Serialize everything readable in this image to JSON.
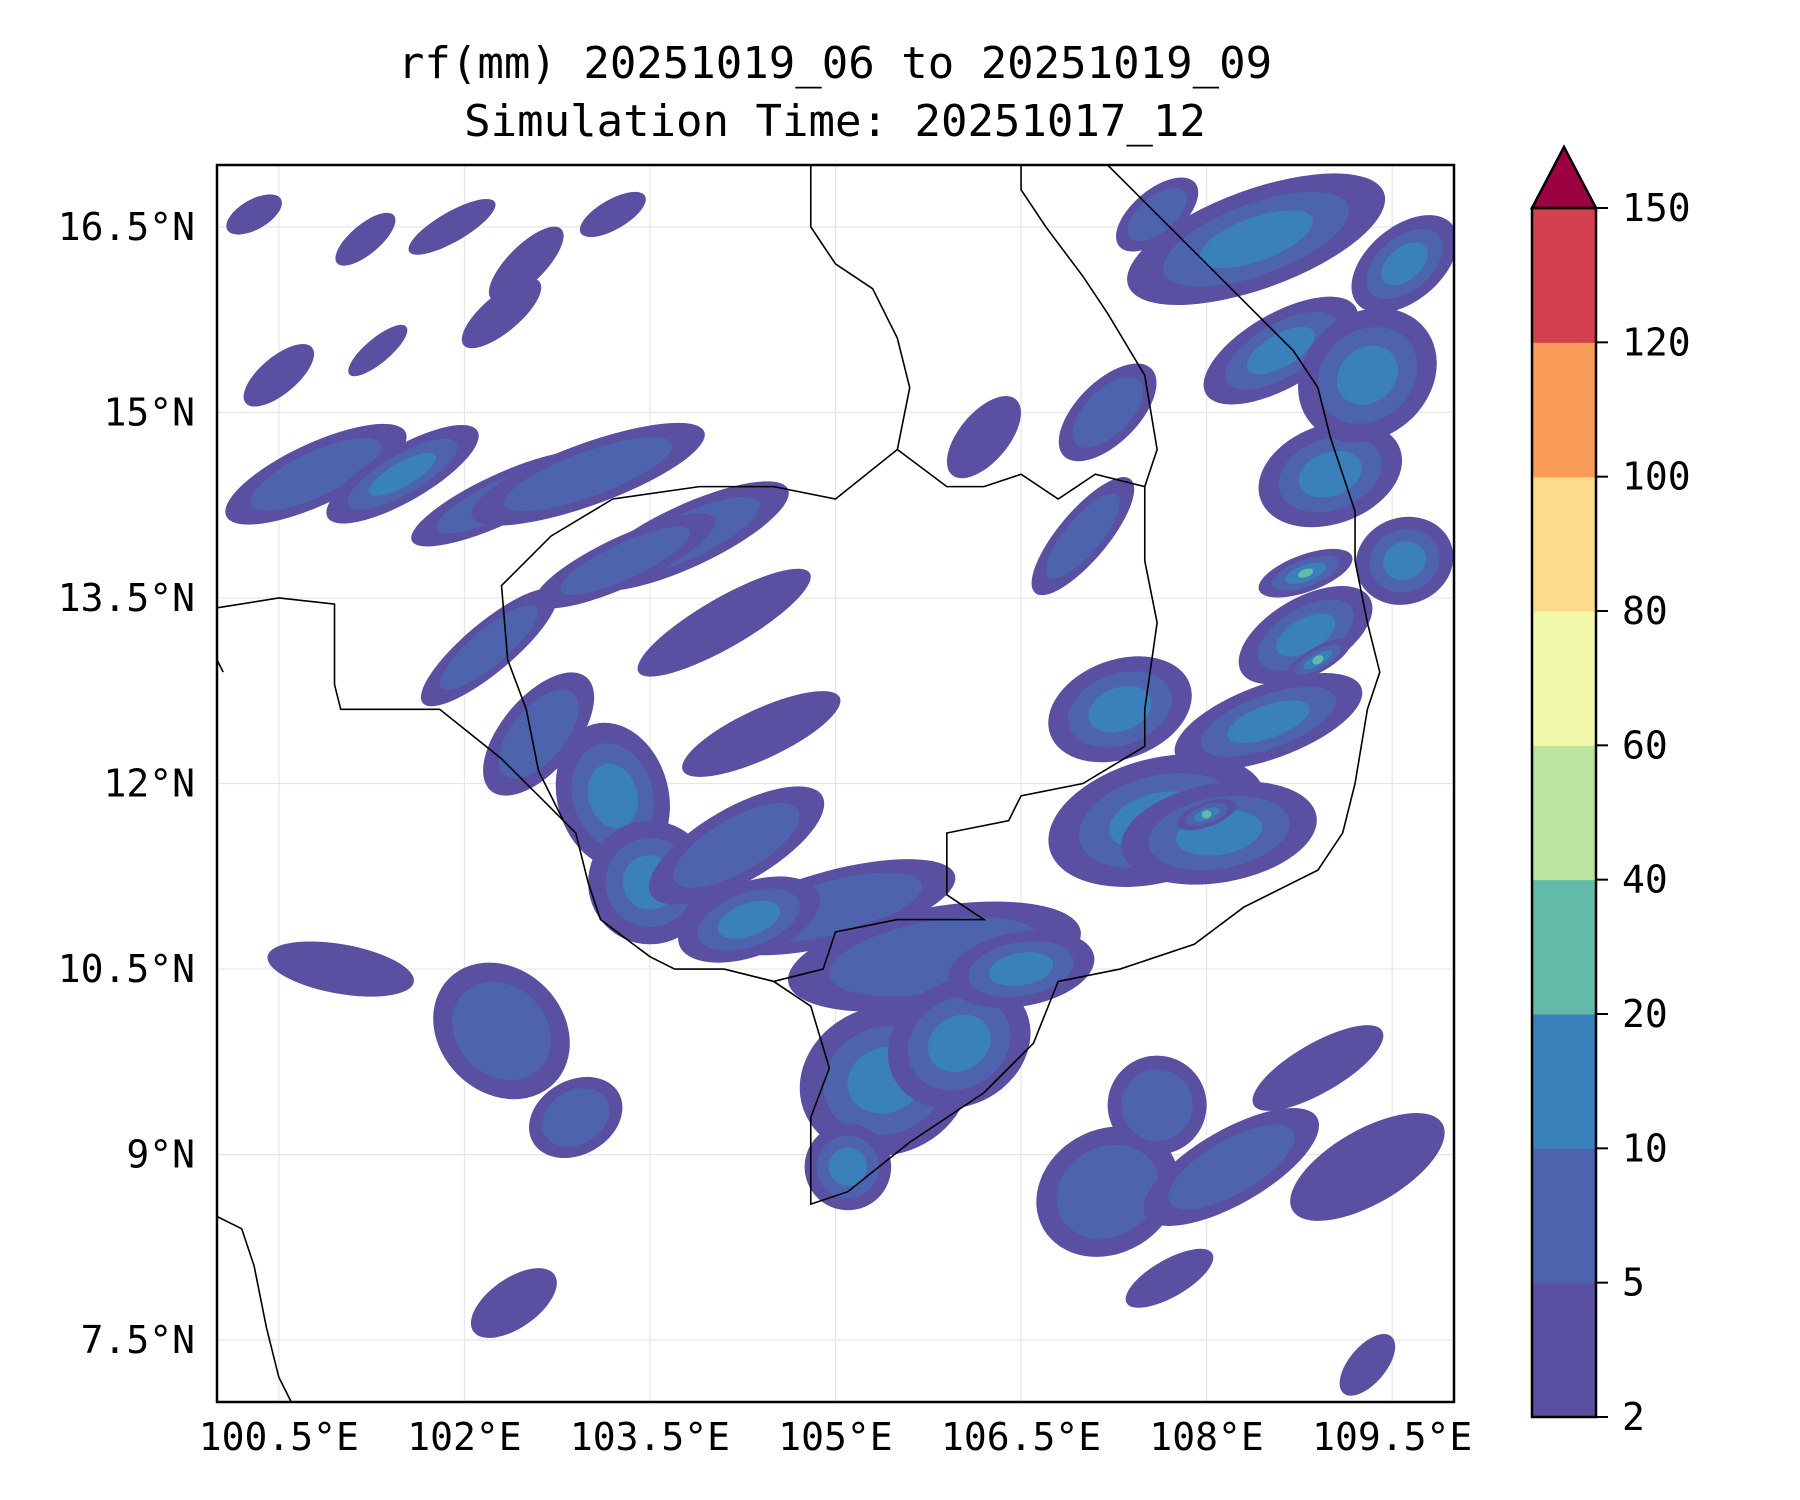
{
  "chart_data": {
    "type": "heatmap",
    "subtype": "filled contour map",
    "title_line1": "rf(mm) 20251019_06 to 20251019_09",
    "title_line2": "Simulation Time: 20251017_12",
    "xlim": [
      100,
      110
    ],
    "ylim": [
      7,
      17
    ],
    "x_ticks": [
      100.5,
      102,
      103.5,
      105,
      106.5,
      108,
      109.5
    ],
    "x_tick_labels": [
      "100.5°E",
      "102°E",
      "103.5°E",
      "105°E",
      "106.5°E",
      "108°E",
      "109.5°E"
    ],
    "y_ticks": [
      16.5,
      15,
      13.5,
      12,
      10.5,
      9,
      7.5
    ],
    "y_tick_labels": [
      "16.5°N",
      "15°N",
      "13.5°N",
      "12°N",
      "10.5°N",
      "9°N",
      "7.5°N"
    ],
    "grid": true,
    "colorbar": {
      "levels": [
        2,
        5,
        10,
        20,
        40,
        60,
        80,
        100,
        120,
        150
      ],
      "tick_labels": [
        "2",
        "5",
        "10",
        "20",
        "40",
        "60",
        "80",
        "100",
        "120",
        "150"
      ],
      "colors": [
        "#5a50a2",
        "#4d63ae",
        "#3a80ba",
        "#62bba9",
        "#bce4a0",
        "#f3f9ac",
        "#fcdc8a",
        "#f99c5a",
        "#d3404e"
      ],
      "extend_color": "#9e0142",
      "extend": "max",
      "placement": "right"
    },
    "rain_cells_approx": [
      [
        100.3,
        16.6,
        0.25,
        0.12,
        -30,
        2
      ],
      [
        101.2,
        16.4,
        0.3,
        0.12,
        -40,
        2
      ],
      [
        101.9,
        16.5,
        0.4,
        0.12,
        -30,
        2
      ],
      [
        102.5,
        16.2,
        0.4,
        0.15,
        -45,
        2
      ],
      [
        103.2,
        16.6,
        0.3,
        0.12,
        -30,
        2
      ],
      [
        100.5,
        15.3,
        0.35,
        0.15,
        -40,
        2
      ],
      [
        101.3,
        15.5,
        0.3,
        0.1,
        -40,
        2
      ],
      [
        102.3,
        15.8,
        0.4,
        0.15,
        -40,
        2
      ],
      [
        100.8,
        14.5,
        0.8,
        0.25,
        -25,
        5
      ],
      [
        101.5,
        14.5,
        0.7,
        0.22,
        -30,
        10
      ],
      [
        102.3,
        14.3,
        0.8,
        0.2,
        -25,
        5
      ],
      [
        103.0,
        14.5,
        1.0,
        0.25,
        -20,
        5
      ],
      [
        103.8,
        14.0,
        0.9,
        0.25,
        -25,
        5
      ],
      [
        104.1,
        13.3,
        0.8,
        0.2,
        -30,
        2
      ],
      [
        103.3,
        13.8,
        0.8,
        0.2,
        -25,
        5
      ],
      [
        102.2,
        13.1,
        0.7,
        0.2,
        -40,
        5
      ],
      [
        102.6,
        12.4,
        0.6,
        0.3,
        -50,
        5
      ],
      [
        103.2,
        11.9,
        0.45,
        0.6,
        -15,
        10
      ],
      [
        103.5,
        11.2,
        0.5,
        0.5,
        -10,
        10
      ],
      [
        104.2,
        11.5,
        0.8,
        0.3,
        -30,
        5
      ],
      [
        104.4,
        12.4,
        0.7,
        0.2,
        -25,
        2
      ],
      [
        105.0,
        11.0,
        1.0,
        0.3,
        -15,
        5
      ],
      [
        104.3,
        10.9,
        0.6,
        0.3,
        -20,
        10
      ],
      [
        105.8,
        10.6,
        1.2,
        0.4,
        -10,
        5
      ],
      [
        105.4,
        9.6,
        0.7,
        0.6,
        -20,
        10
      ],
      [
        106.0,
        9.9,
        0.6,
        0.5,
        -30,
        10
      ],
      [
        105.1,
        8.9,
        0.35,
        0.35,
        0,
        10
      ],
      [
        106.5,
        10.5,
        0.6,
        0.3,
        -10,
        10
      ],
      [
        107.6,
        11.7,
        0.9,
        0.5,
        -15,
        10
      ],
      [
        108.1,
        11.6,
        0.8,
        0.4,
        -10,
        10
      ],
      [
        108.0,
        11.75,
        0.25,
        0.1,
        -20,
        20
      ],
      [
        107.3,
        12.6,
        0.6,
        0.4,
        -20,
        10
      ],
      [
        108.5,
        12.5,
        0.8,
        0.3,
        -20,
        10
      ],
      [
        108.8,
        13.2,
        0.6,
        0.3,
        -30,
        10
      ],
      [
        108.9,
        13.0,
        0.3,
        0.1,
        -30,
        20
      ],
      [
        108.8,
        13.7,
        0.4,
        0.15,
        -20,
        20
      ],
      [
        109.0,
        14.5,
        0.6,
        0.4,
        -20,
        10
      ],
      [
        108.6,
        15.5,
        0.7,
        0.3,
        -30,
        10
      ],
      [
        109.3,
        15.3,
        0.6,
        0.5,
        -40,
        10
      ],
      [
        108.4,
        16.4,
        1.1,
        0.4,
        -20,
        10
      ],
      [
        109.6,
        16.2,
        0.5,
        0.3,
        -40,
        10
      ],
      [
        109.6,
        13.8,
        0.4,
        0.35,
        -20,
        10
      ],
      [
        107.0,
        14.0,
        0.6,
        0.2,
        -50,
        5
      ],
      [
        106.2,
        14.8,
        0.4,
        0.2,
        -50,
        2
      ],
      [
        107.2,
        15.0,
        0.5,
        0.25,
        -45,
        5
      ],
      [
        107.6,
        16.6,
        0.4,
        0.2,
        -40,
        5
      ],
      [
        101.0,
        10.5,
        0.6,
        0.2,
        10,
        2
      ],
      [
        102.3,
        10.0,
        0.5,
        0.6,
        -45,
        5
      ],
      [
        102.9,
        9.3,
        0.4,
        0.3,
        -30,
        5
      ],
      [
        107.2,
        8.7,
        0.6,
        0.5,
        -30,
        5
      ],
      [
        108.2,
        8.9,
        0.8,
        0.3,
        -30,
        5
      ],
      [
        109.3,
        8.9,
        0.7,
        0.3,
        -30,
        2
      ],
      [
        107.6,
        9.4,
        0.4,
        0.4,
        -40,
        5
      ],
      [
        108.9,
        9.7,
        0.6,
        0.2,
        -30,
        2
      ],
      [
        102.4,
        7.8,
        0.4,
        0.2,
        -35,
        2
      ],
      [
        107.7,
        8.0,
        0.4,
        0.15,
        -30,
        2
      ],
      [
        109.3,
        7.3,
        0.3,
        0.15,
        -50,
        2
      ]
    ]
  }
}
